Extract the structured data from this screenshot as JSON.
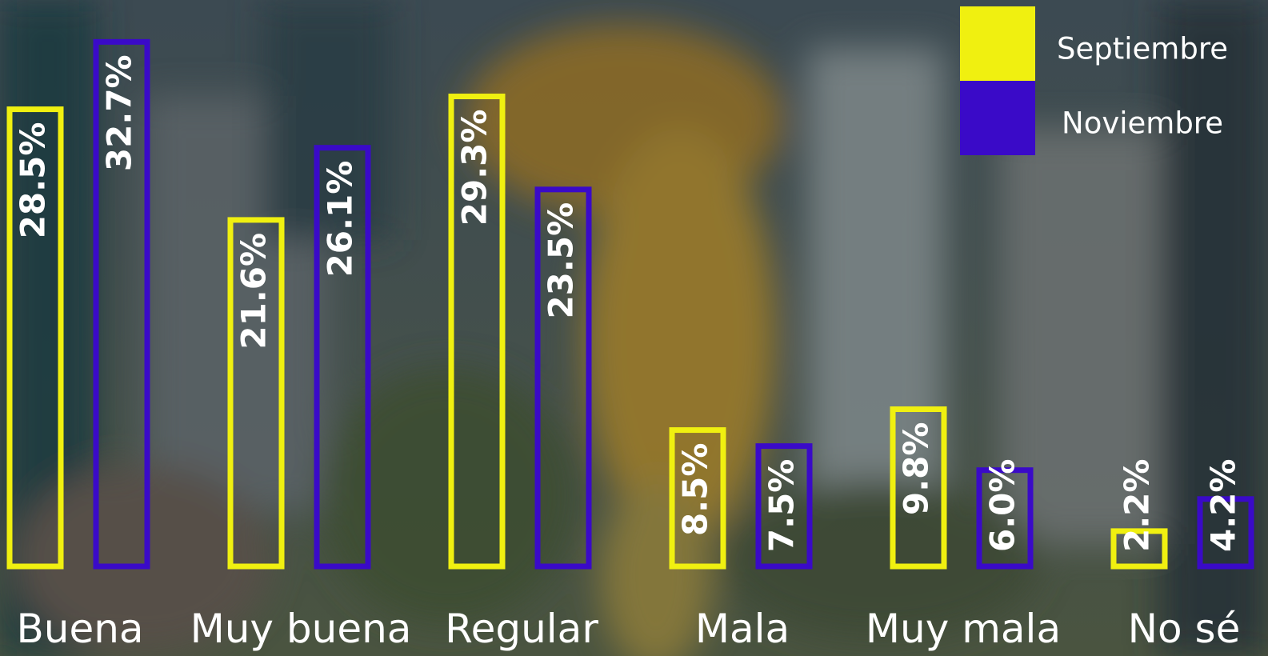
{
  "chart_data": {
    "type": "bar",
    "categories": [
      "Buena",
      "Muy buena",
      "Regular",
      "Mala",
      "Muy mala",
      "No sé"
    ],
    "series": [
      {
        "name": "Septiembre",
        "color": "#f0f010",
        "values": [
          28.5,
          21.6,
          29.3,
          8.5,
          9.8,
          2.2
        ],
        "value_labels": [
          "28.5%",
          "21.6%",
          "29.3%",
          "8.5%",
          "9.8%",
          "2.2%"
        ]
      },
      {
        "name": "Noviembre",
        "color": "#3a0ac8",
        "values": [
          32.7,
          26.1,
          23.5,
          7.5,
          6.0,
          4.2
        ],
        "value_labels": [
          "32.7%",
          "26.1%",
          "23.5%",
          "7.5%",
          "6.0%",
          "4.2%"
        ]
      }
    ],
    "legend": "upper right"
  }
}
